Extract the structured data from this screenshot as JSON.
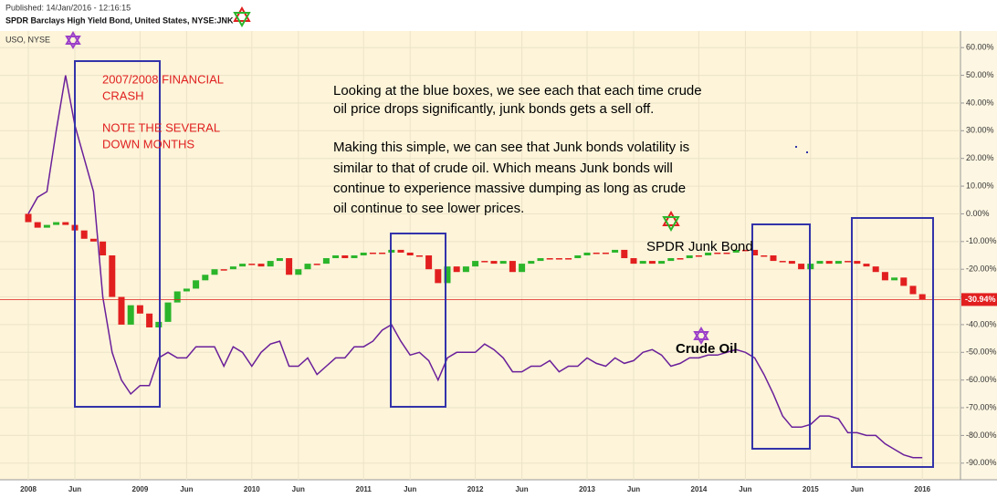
{
  "chart_data": {
    "type": "candlestick",
    "published": "Published: 14/Jan/2016 - 12:16:15",
    "title": "SPDR Barclays High Yield Bond, United States, NYSE:JNK",
    "subtitle": "USO, NYSE",
    "categories": [
      "2008",
      null,
      null,
      null,
      null,
      "Jun",
      null,
      null,
      null,
      null,
      null,
      null,
      "2009",
      null,
      null,
      null,
      null,
      "Jun",
      null,
      null,
      null,
      null,
      null,
      null,
      "2010",
      null,
      null,
      null,
      null,
      "Jun",
      null,
      null,
      null,
      null,
      null,
      null,
      "2011",
      null,
      null,
      null,
      null,
      "Jun",
      null,
      null,
      null,
      null,
      null,
      null,
      "2012",
      null,
      null,
      null,
      null,
      "Jun",
      null,
      null,
      null,
      null,
      null,
      null,
      "2013",
      null,
      null,
      null,
      null,
      "Jun",
      null,
      null,
      null,
      null,
      null,
      null,
      "2014",
      null,
      null,
      null,
      null,
      "Jun",
      null,
      null,
      null,
      null,
      null,
      null,
      "2015",
      null,
      null,
      null,
      null,
      "Jun",
      null,
      null,
      null,
      null,
      null,
      null,
      "2016"
    ],
    "candles": {
      "up_color": "#2bb52b",
      "down_color": "#e21f1f",
      "open": [
        0,
        -3,
        -5,
        -4,
        -3,
        -4,
        -6,
        -9,
        -10,
        -15,
        -30,
        -40,
        -33,
        -36,
        -41,
        -39,
        -32,
        -28,
        -27,
        -24,
        -22,
        -20,
        -20,
        -19,
        -18,
        -18,
        -19,
        -17,
        -16,
        -22,
        -20,
        -18,
        -18,
        -16,
        -15,
        -16,
        -15,
        -14,
        -14,
        -14,
        -13,
        -14,
        -15,
        -15,
        -20,
        -25,
        -19,
        -21,
        -19,
        -17,
        -17,
        -18,
        -17,
        -21,
        -18,
        -17,
        -16,
        -16,
        -16,
        -16,
        -15,
        -14,
        -14,
        -14,
        -13,
        -16,
        -18,
        -17,
        -18,
        -17,
        -16,
        -16,
        -15,
        -15,
        -14,
        -14,
        -14,
        -13,
        -13,
        -15,
        -15,
        -17,
        -17,
        -18,
        -20,
        -18,
        -17,
        -18,
        -17,
        -17,
        -18,
        -19,
        -21,
        -24,
        -23,
        -26,
        -29
      ],
      "close": [
        -3,
        -5,
        -4,
        -3,
        -4,
        -6,
        -9,
        -10,
        -15,
        -30,
        -40,
        -33,
        -36,
        -41,
        -39,
        -32,
        -28,
        -27,
        -24,
        -22,
        -20,
        -20,
        -19,
        -18,
        -18,
        -19,
        -17,
        -16,
        -22,
        -20,
        -18,
        -18,
        -16,
        -15,
        -16,
        -15,
        -14,
        -14,
        -14,
        -13,
        -14,
        -15,
        -15,
        -20,
        -25,
        -19,
        -21,
        -19,
        -17,
        -17,
        -18,
        -17,
        -21,
        -18,
        -17,
        -16,
        -16,
        -16,
        -16,
        -15,
        -14,
        -14,
        -14,
        -13,
        -16,
        -18,
        -17,
        -18,
        -17,
        -16,
        -16,
        -15,
        -15,
        -14,
        -14,
        -14,
        -13,
        -13,
        -15,
        -15,
        -17,
        -17,
        -18,
        -20,
        -18,
        -17,
        -18,
        -17,
        -17,
        -18,
        -19,
        -21,
        -24,
        -23,
        -26,
        -29,
        -31
      ]
    },
    "overlay": {
      "type": "line",
      "color": "#6a1f9a",
      "values": [
        0,
        6,
        8,
        30,
        50,
        32,
        20,
        8,
        -30,
        -50,
        -60,
        -65,
        -62,
        -62,
        -52,
        -50,
        -52,
        -52,
        -48,
        -48,
        -48,
        -55,
        -48,
        -50,
        -55,
        -50,
        -47,
        -46,
        -55,
        -55,
        -52,
        -58,
        -55,
        -52,
        -52,
        -48,
        -48,
        -46,
        -42,
        -40,
        -46,
        -51,
        -50,
        -53,
        -60,
        -52,
        -50,
        -50,
        -50,
        -47,
        -49,
        -52,
        -57,
        -57,
        -55,
        -55,
        -53,
        -57,
        -55,
        -55,
        -52,
        -54,
        -55,
        -52,
        -54,
        -53,
        -50,
        -49,
        -51,
        -55,
        -54,
        -52,
        -52,
        -51,
        -51,
        -50,
        -49,
        -50,
        -52,
        -58,
        -65,
        -73,
        -77,
        -77,
        -76,
        -73,
        -73,
        -74,
        -79,
        -79,
        -80,
        -80,
        -83,
        -85,
        -87,
        -88,
        -88
      ]
    },
    "ylim": [
      -96,
      66
    ],
    "yticks": [
      {
        "value": 60,
        "label": "60.00%"
      },
      {
        "value": 50,
        "label": "50.00%"
      },
      {
        "value": 40,
        "label": "40.00%"
      },
      {
        "value": 30,
        "label": "30.00%"
      },
      {
        "value": 20,
        "label": "20.00%"
      },
      {
        "value": 10,
        "label": "10.00%"
      },
      {
        "value": 0,
        "label": "0.00%"
      },
      {
        "value": -10,
        "label": "-10.00%"
      },
      {
        "value": -20,
        "label": "-20.00%"
      },
      {
        "value": -30,
        "label": "-30.00%"
      },
      {
        "value": -40,
        "label": "-40.00%"
      },
      {
        "value": -50,
        "label": "-50.00%"
      },
      {
        "value": -60,
        "label": "-60.00%"
      },
      {
        "value": -70,
        "label": "-70.00%"
      },
      {
        "value": -80,
        "label": "-80.00%"
      },
      {
        "value": -90,
        "label": "-90.00%"
      }
    ],
    "grid": true,
    "last_price": {
      "value": -30.94,
      "label": "-30.94%"
    },
    "annotations_red": [
      "2007/2008 FINANCIAL",
      "CRASH",
      "NOTE THE SEVERAL",
      "DOWN MONTHS"
    ],
    "annotations_black": [
      "Looking at the blue boxes, we see each that each time crude",
      "oil price drops significantly, junk bonds gets a sell off.",
      "Making this simple, we can see that Junk bonds volatility is",
      "similar to that of crude oil. Which means Junk bonds will",
      "continue to experience massive dumping as long as crude",
      "oil continue to see lower prices."
    ],
    "label_junk": "SPDR Junk Bond",
    "label_oil": "Crude Oil"
  }
}
